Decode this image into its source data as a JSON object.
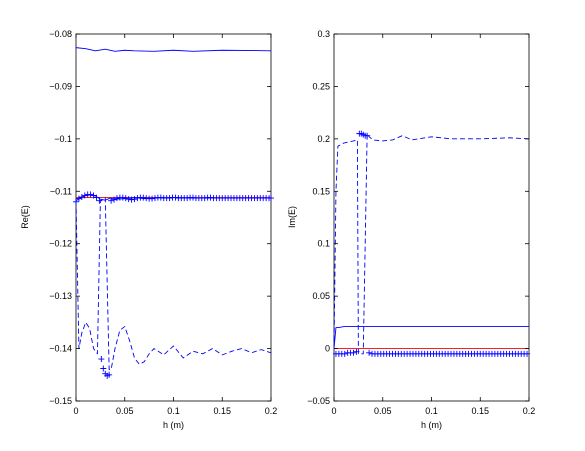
{
  "chart_data": [
    {
      "type": "line",
      "xlabel": "h (m)",
      "ylabel": "Re(E)",
      "xlim": [
        0,
        0.2
      ],
      "ylim": [
        -0.15,
        -0.08
      ],
      "xticks": [
        0,
        0.05,
        0.1,
        0.15,
        0.2
      ],
      "xtick_labels": [
        "0",
        "0.05",
        "0.1",
        "0.15",
        "0.2"
      ],
      "yticks": [
        -0.15,
        -0.14,
        -0.13,
        -0.12,
        -0.11,
        -0.1,
        -0.09,
        -0.08
      ],
      "ytick_labels": [
        "−0.15",
        "−0.14",
        "−0.13",
        "−0.12",
        "−0.11",
        "−0.1",
        "−0.09",
        "−0.08"
      ],
      "grid": false,
      "series": [
        {
          "style": "solid",
          "color": "#0000ff",
          "x": [
            0,
            0.01,
            0.02,
            0.03,
            0.04,
            0.05,
            0.06,
            0.08,
            0.1,
            0.12,
            0.15,
            0.2
          ],
          "y": [
            -0.0826,
            -0.0828,
            -0.0832,
            -0.0829,
            -0.0833,
            -0.0831,
            -0.0832,
            -0.0833,
            -0.0831,
            -0.0833,
            -0.0831,
            -0.0832
          ]
        },
        {
          "style": "solid",
          "color": "#ff0000",
          "x": [
            0,
            0.2
          ],
          "y": [
            -0.1112,
            -0.1112
          ]
        },
        {
          "style": "solid",
          "color": "#0000ff",
          "x": [
            0,
            0.005,
            0.01,
            0.015,
            0.02,
            0.025,
            0.03,
            0.035,
            0.04,
            0.05,
            0.06,
            0.07,
            0.08,
            0.1,
            0.12,
            0.15,
            0.2
          ],
          "y": [
            -0.1118,
            -0.1112,
            -0.1108,
            -0.1107,
            -0.1109,
            -0.1115,
            -0.1117,
            -0.1113,
            -0.1115,
            -0.1114,
            -0.1112,
            -0.1114,
            -0.1113,
            -0.1112,
            -0.1113,
            -0.1113,
            -0.1113
          ]
        },
        {
          "style": "dashed",
          "color": "#0000ff",
          "x": [
            0,
            0.003,
            0.006,
            0.01,
            0.014,
            0.018,
            0.022,
            0.025,
            0.03,
            0.034,
            0.036,
            0.04,
            0.045,
            0.05,
            0.055,
            0.06,
            0.065,
            0.07,
            0.075,
            0.08,
            0.09,
            0.1,
            0.11,
            0.12,
            0.13,
            0.14,
            0.15,
            0.16,
            0.17,
            0.18,
            0.19,
            0.2
          ],
          "y": [
            -0.1118,
            -0.14,
            -0.137,
            -0.135,
            -0.1362,
            -0.14,
            -0.141,
            -0.1118,
            -0.1112,
            -0.144,
            -0.144,
            -0.14,
            -0.1365,
            -0.1358,
            -0.1385,
            -0.1418,
            -0.143,
            -0.1425,
            -0.141,
            -0.14,
            -0.1412,
            -0.1395,
            -0.1418,
            -0.1405,
            -0.141,
            -0.14,
            -0.1412,
            -0.1405,
            -0.14,
            -0.1408,
            -0.1402,
            -0.1408
          ]
        },
        {
          "style": "plus",
          "color": "#0000ff",
          "x": [
            0,
            0.003,
            0.006,
            0.009,
            0.012,
            0.015,
            0.018,
            0.021,
            0.024,
            0.026,
            0.028,
            0.03,
            0.032,
            0.034,
            0.036,
            0.039,
            0.042,
            0.045,
            0.048,
            0.051,
            0.054,
            0.057,
            0.06,
            0.063,
            0.066,
            0.069,
            0.072,
            0.075,
            0.078,
            0.081,
            0.084,
            0.087,
            0.09,
            0.093,
            0.096,
            0.099,
            0.102,
            0.105,
            0.108,
            0.111,
            0.114,
            0.117,
            0.12,
            0.123,
            0.126,
            0.129,
            0.132,
            0.135,
            0.138,
            0.141,
            0.144,
            0.147,
            0.15,
            0.153,
            0.156,
            0.159,
            0.162,
            0.165,
            0.168,
            0.171,
            0.174,
            0.177,
            0.18,
            0.183,
            0.186,
            0.189,
            0.192,
            0.195,
            0.198,
            0.2
          ],
          "y": [
            -0.112,
            -0.1114,
            -0.1111,
            -0.1108,
            -0.1106,
            -0.1106,
            -0.1108,
            -0.1112,
            -0.1118,
            -0.142,
            -0.1438,
            -0.1448,
            -0.1452,
            -0.145,
            -0.1118,
            -0.1116,
            -0.1113,
            -0.1112,
            -0.1112,
            -0.1113,
            -0.1115,
            -0.1116,
            -0.1115,
            -0.1113,
            -0.1112,
            -0.1112,
            -0.1113,
            -0.1114,
            -0.1114,
            -0.1113,
            -0.1112,
            -0.1112,
            -0.1113,
            -0.1113,
            -0.1113,
            -0.1112,
            -0.1112,
            -0.1113,
            -0.1113,
            -0.1113,
            -0.1113,
            -0.1112,
            -0.1112,
            -0.1113,
            -0.1113,
            -0.1113,
            -0.1113,
            -0.1112,
            -0.1112,
            -0.1113,
            -0.1113,
            -0.1113,
            -0.1113,
            -0.1113,
            -0.1113,
            -0.1113,
            -0.1113,
            -0.1113,
            -0.1113,
            -0.1113,
            -0.1113,
            -0.1113,
            -0.1113,
            -0.1113,
            -0.1113,
            -0.1113,
            -0.1113,
            -0.1113,
            -0.1113,
            -0.1113
          ]
        }
      ]
    },
    {
      "type": "line",
      "xlabel": "h (m)",
      "ylabel": "Im(E)",
      "xlim": [
        0,
        0.2
      ],
      "ylim": [
        -0.05,
        0.3
      ],
      "xticks": [
        0,
        0.05,
        0.1,
        0.15,
        0.2
      ],
      "xtick_labels": [
        "0",
        "0.05",
        "0.1",
        "0.15",
        "0.2"
      ],
      "yticks": [
        -0.05,
        0,
        0.05,
        0.1,
        0.15,
        0.2,
        0.25,
        0.3
      ],
      "ytick_labels": [
        "−0.05",
        "0",
        "0.05",
        "0.1",
        "0.15",
        "0.2",
        "0.25",
        "0.3"
      ],
      "grid": false,
      "series": [
        {
          "style": "dashed",
          "color": "#0000ff",
          "x": [
            0,
            0.002,
            0.004,
            0.01,
            0.02,
            0.024,
            0.025,
            0.03,
            0.034,
            0.036,
            0.04,
            0.05,
            0.06,
            0.07,
            0.08,
            0.1,
            0.12,
            0.15,
            0.18,
            0.2
          ],
          "y": [
            0.0,
            0.15,
            0.193,
            0.196,
            0.198,
            0.199,
            -0.005,
            -0.005,
            0.205,
            0.202,
            0.199,
            0.198,
            0.199,
            0.203,
            0.199,
            0.202,
            0.2,
            0.2,
            0.201,
            0.2
          ]
        },
        {
          "style": "solid",
          "color": "#0000ff",
          "x": [
            0,
            0.002,
            0.005,
            0.01,
            0.02,
            0.03,
            0.04,
            0.06,
            0.08,
            0.1,
            0.15,
            0.2
          ],
          "y": [
            0.0,
            0.02,
            0.02,
            0.021,
            0.021,
            0.021,
            0.021,
            0.021,
            0.021,
            0.021,
            0.021,
            0.021
          ]
        },
        {
          "style": "solid",
          "color": "#ff0000",
          "x": [
            0,
            0.2
          ],
          "y": [
            0.0,
            0.0
          ]
        },
        {
          "style": "plus",
          "color": "#0000ff",
          "x": [
            0.002,
            0.005,
            0.008,
            0.011,
            0.014,
            0.017,
            0.02,
            0.023,
            0.026,
            0.028,
            0.03,
            0.032,
            0.034,
            0.036,
            0.039,
            0.042,
            0.045,
            0.048,
            0.051,
            0.054,
            0.057,
            0.06,
            0.063,
            0.066,
            0.069,
            0.072,
            0.075,
            0.078,
            0.081,
            0.084,
            0.087,
            0.09,
            0.093,
            0.096,
            0.099,
            0.102,
            0.105,
            0.108,
            0.111,
            0.114,
            0.117,
            0.12,
            0.123,
            0.126,
            0.129,
            0.132,
            0.135,
            0.138,
            0.141,
            0.144,
            0.147,
            0.15,
            0.153,
            0.156,
            0.159,
            0.162,
            0.165,
            0.168,
            0.171,
            0.174,
            0.177,
            0.18,
            0.183,
            0.186,
            0.189,
            0.192,
            0.195,
            0.198
          ],
          "y": [
            -0.005,
            -0.005,
            -0.005,
            -0.005,
            -0.004,
            -0.004,
            -0.004,
            -0.003,
            0.205,
            0.205,
            0.204,
            0.203,
            0.203,
            -0.004,
            -0.005,
            -0.005,
            -0.005,
            -0.005,
            -0.005,
            -0.005,
            -0.005,
            -0.005,
            -0.005,
            -0.005,
            -0.005,
            -0.005,
            -0.005,
            -0.005,
            -0.005,
            -0.005,
            -0.005,
            -0.005,
            -0.005,
            -0.005,
            -0.005,
            -0.005,
            -0.005,
            -0.005,
            -0.005,
            -0.005,
            -0.005,
            -0.005,
            -0.005,
            -0.005,
            -0.005,
            -0.005,
            -0.005,
            -0.005,
            -0.005,
            -0.005,
            -0.005,
            -0.005,
            -0.005,
            -0.005,
            -0.005,
            -0.005,
            -0.005,
            -0.005,
            -0.005,
            -0.005,
            -0.005,
            -0.005,
            -0.005,
            -0.005,
            -0.005,
            -0.005,
            -0.005,
            -0.005
          ]
        }
      ]
    }
  ]
}
